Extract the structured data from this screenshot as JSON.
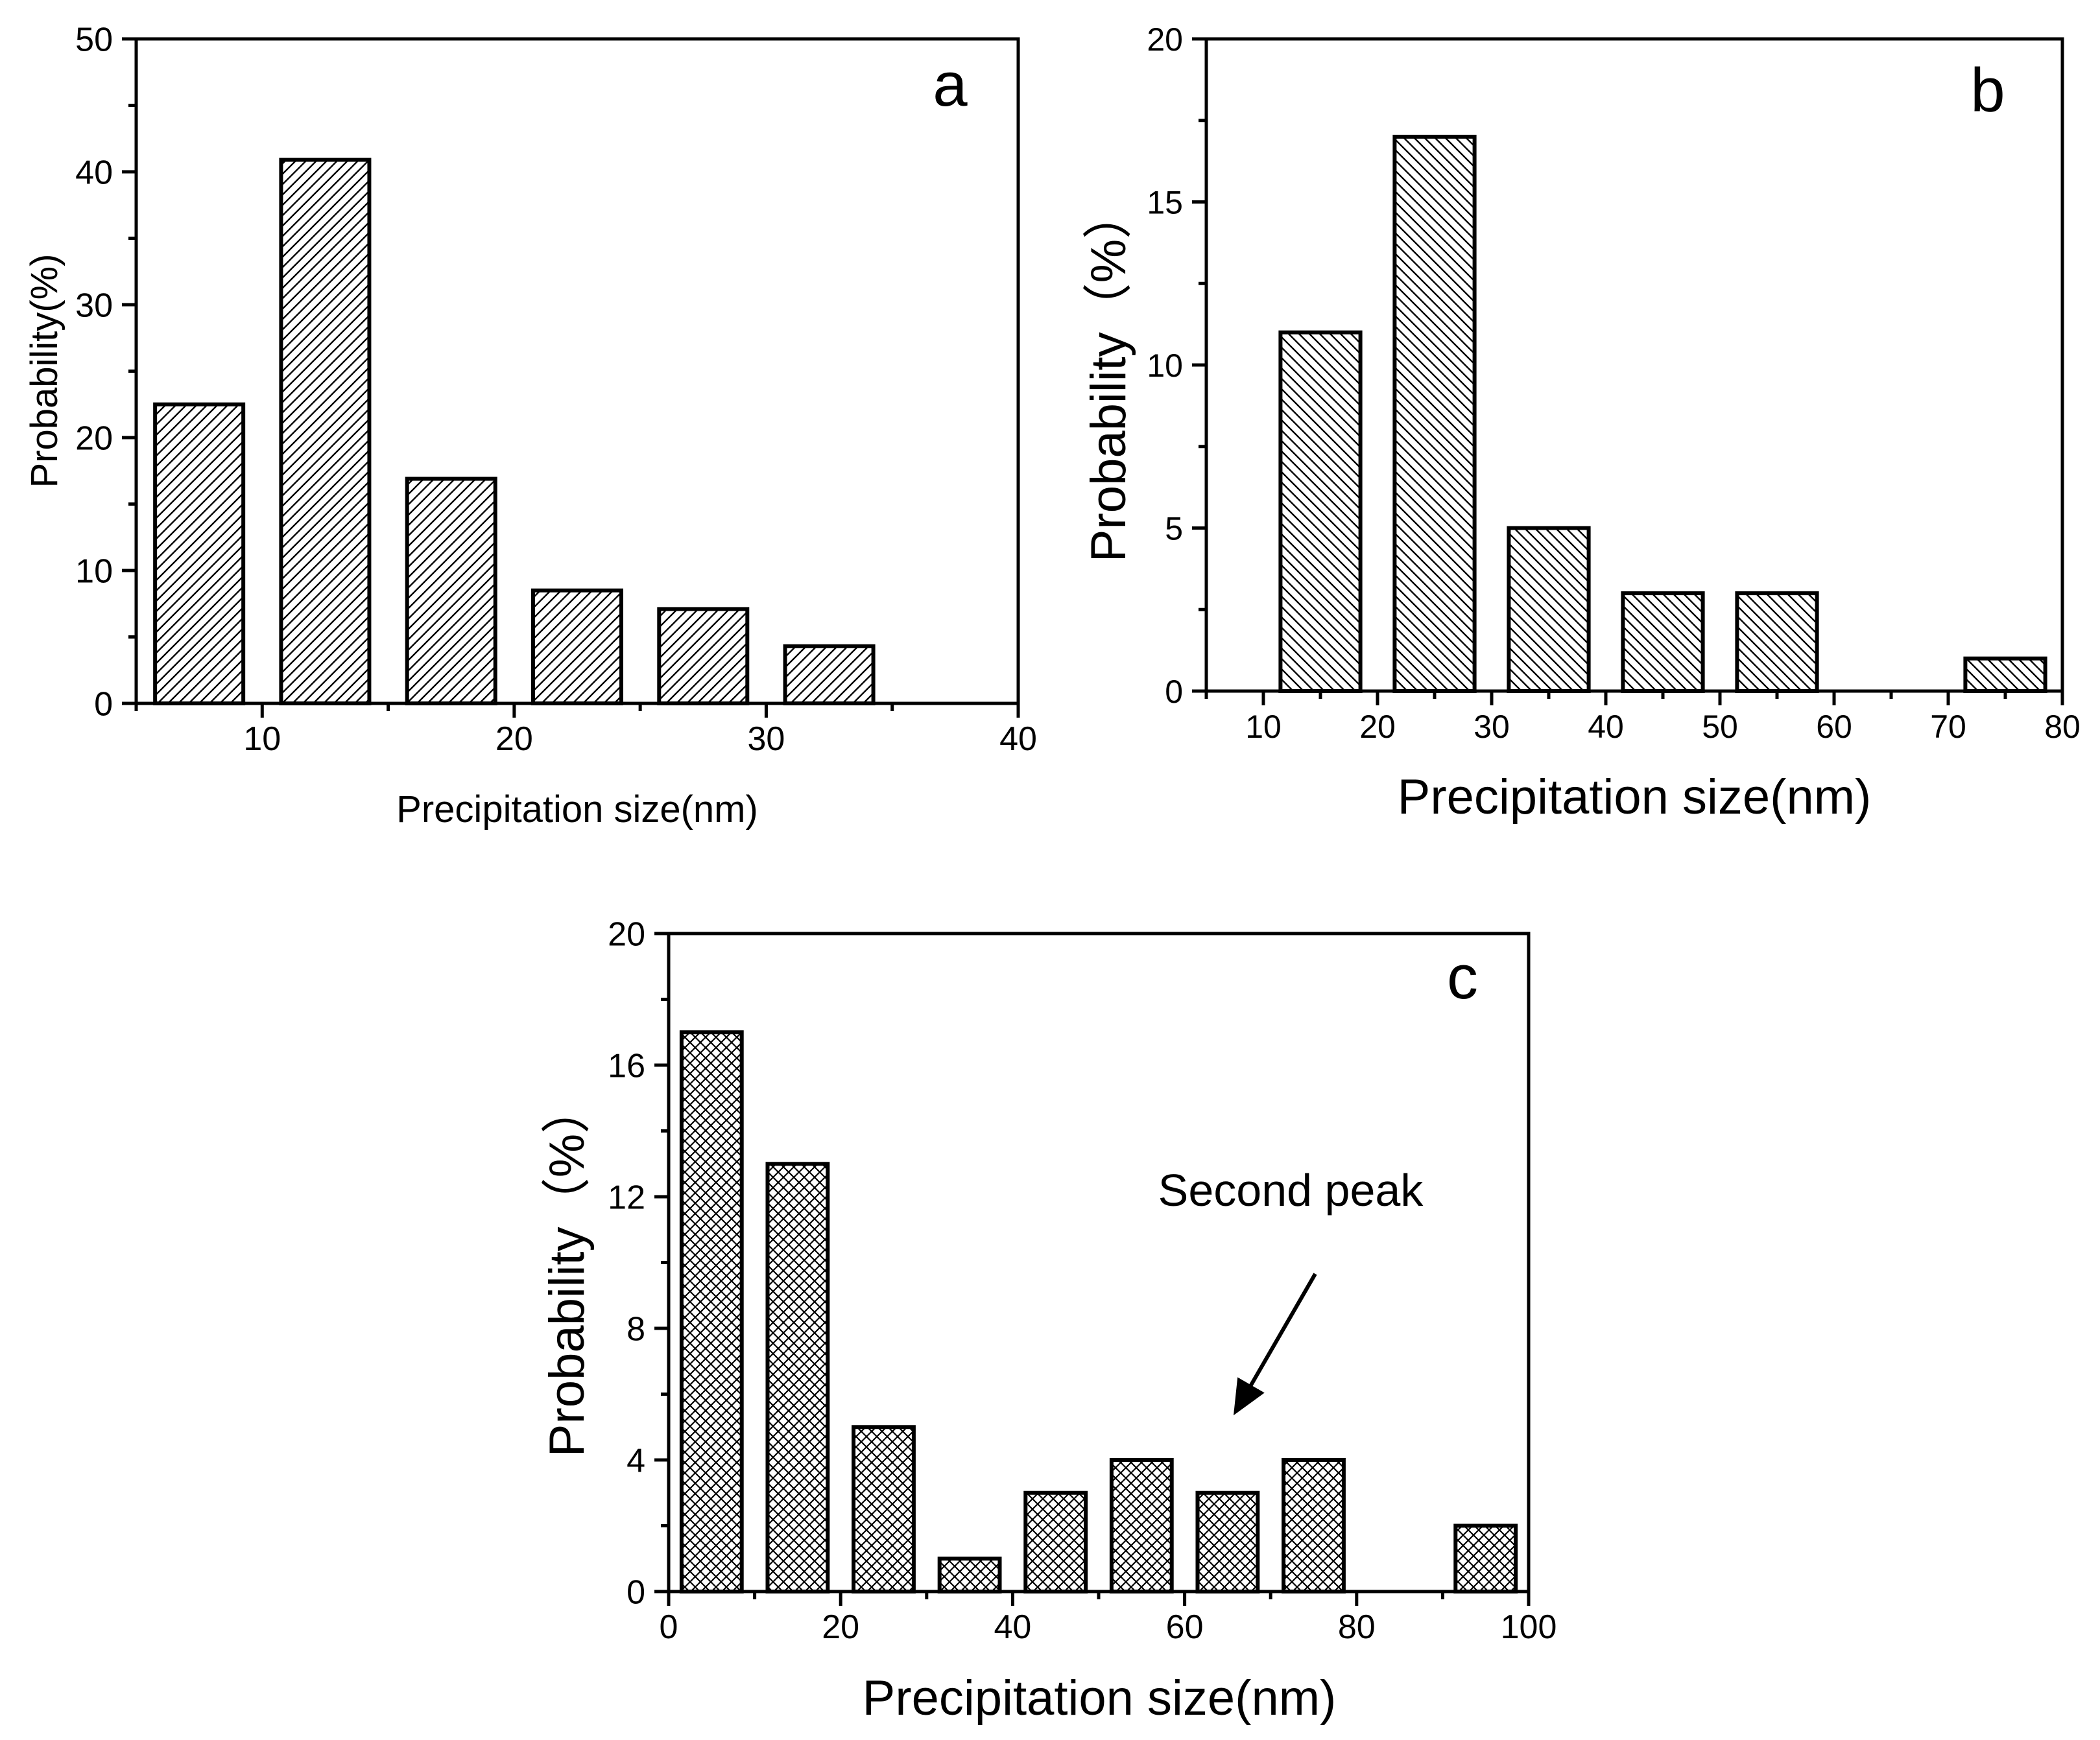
{
  "colors": {
    "ink": "#000000",
    "background": "#ffffff"
  },
  "chart_data": [
    {
      "type": "bar",
      "panel_label": "a",
      "xlabel": "Precipitation size(nm)",
      "ylabel": "Probability(%)",
      "xlim": [
        5,
        40
      ],
      "ylim": [
        0,
        50
      ],
      "xticks": [
        10,
        20,
        30,
        40
      ],
      "yticks": [
        0,
        10,
        20,
        30,
        40,
        50
      ],
      "bin_width": 5,
      "hatch": "diagonal-right",
      "bins": [
        {
          "x": 7.5,
          "value": 22.5
        },
        {
          "x": 12.5,
          "value": 40.9
        },
        {
          "x": 17.5,
          "value": 16.9
        },
        {
          "x": 22.5,
          "value": 8.5
        },
        {
          "x": 27.5,
          "value": 7.1
        },
        {
          "x": 32.5,
          "value": 4.3
        }
      ]
    },
    {
      "type": "bar",
      "panel_label": "b",
      "xlabel": "Precipitation size(nm)",
      "ylabel": "Probability（%）",
      "xlim": [
        5,
        80
      ],
      "ylim": [
        0,
        20
      ],
      "xticks": [
        10,
        20,
        30,
        40,
        50,
        60,
        70,
        80
      ],
      "yticks": [
        0,
        5,
        10,
        15,
        20
      ],
      "bin_width": 10,
      "hatch": "diagonal-left",
      "bins": [
        {
          "x": 15,
          "value": 11
        },
        {
          "x": 25,
          "value": 17
        },
        {
          "x": 35,
          "value": 5
        },
        {
          "x": 45,
          "value": 3
        },
        {
          "x": 55,
          "value": 3
        },
        {
          "x": 75,
          "value": 1
        }
      ]
    },
    {
      "type": "bar",
      "panel_label": "c",
      "xlabel": "Precipitation size(nm)",
      "ylabel": "Probability（%）",
      "xlim": [
        0,
        100
      ],
      "ylim": [
        0,
        20
      ],
      "xticks": [
        0,
        20,
        40,
        60,
        80,
        100
      ],
      "yticks": [
        0,
        4,
        8,
        12,
        16,
        20
      ],
      "bin_width": 10,
      "hatch": "crosshatch",
      "bins": [
        {
          "x": 5,
          "value": 17
        },
        {
          "x": 15,
          "value": 13
        },
        {
          "x": 25,
          "value": 5
        },
        {
          "x": 35,
          "value": 1
        },
        {
          "x": 45,
          "value": 3
        },
        {
          "x": 55,
          "value": 4
        },
        {
          "x": 65,
          "value": 3
        },
        {
          "x": 75,
          "value": 4
        },
        {
          "x": 95,
          "value": 2
        }
      ],
      "annotation": {
        "text": "Second peak",
        "points_to_x": 65
      }
    }
  ]
}
